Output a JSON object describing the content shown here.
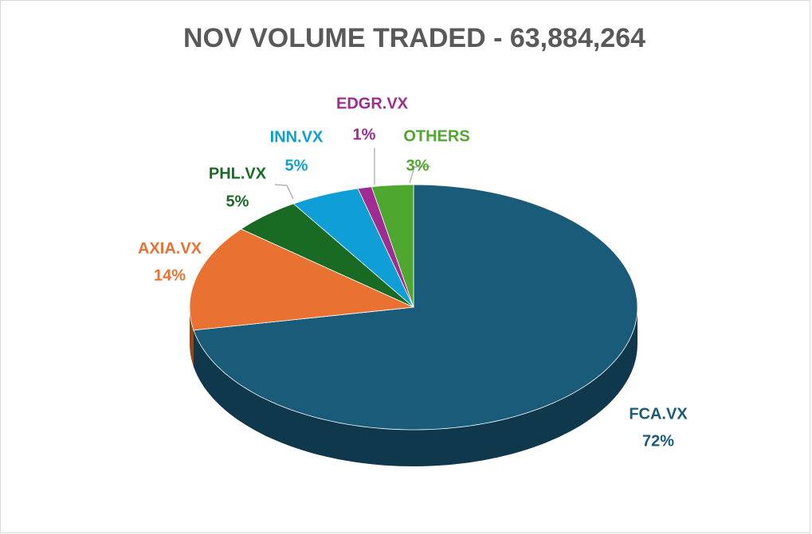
{
  "chart_data": {
    "type": "pie",
    "title": "NOV VOLUME TRADED - 63,884,264",
    "categories": [
      "FCA.VX",
      "AXIA.VX",
      "PHL.VX",
      "INN.VX",
      "EDGR.VX",
      "OTHERS"
    ],
    "values": [
      72,
      14,
      5,
      5,
      1,
      3
    ],
    "value_labels": [
      "72%",
      "14%",
      "5%",
      "5%",
      "1%",
      "3%"
    ],
    "colors": [
      "#1a5b7a",
      "#e97132",
      "#196b24",
      "#0f9ed5",
      "#a02b93",
      "#4ea72e"
    ]
  }
}
